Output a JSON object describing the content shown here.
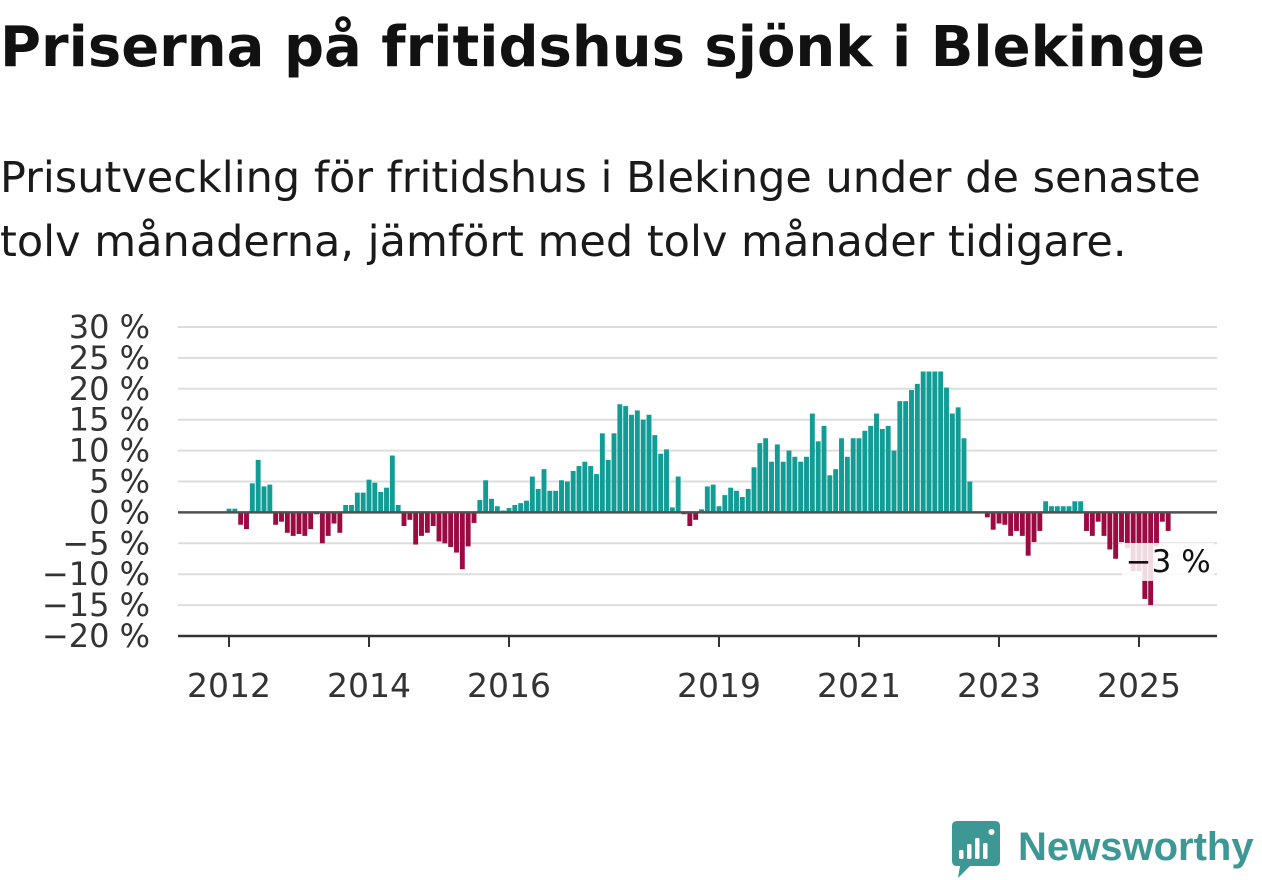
{
  "chart_data": {
    "type": "bar",
    "title": "Priserna på fritidshus sjönk i Blekinge",
    "subtitle": "Prisutveckling för fritidshus i Blekinge under de senaste tolv månaderna, jämfört med tolv månader tidigare.",
    "ylim": [
      -20,
      30
    ],
    "y_ticks": [
      30,
      25,
      20,
      15,
      10,
      5,
      0,
      -5,
      -10,
      -15,
      -20
    ],
    "y_tick_labels": [
      "30 %",
      "25 %",
      "20 %",
      "15 %",
      "10 %",
      "5 %",
      "0 %",
      "−5 %",
      "−10 %",
      "−15 %",
      "−20 %"
    ],
    "x_tick_labels": [
      "2012",
      "2014",
      "2016",
      "2019",
      "2021",
      "2023",
      "2025"
    ],
    "grid": true,
    "colors": {
      "positive": "#119c96",
      "negative": "#9b0a41"
    },
    "x": [
      "2012-01",
      "2012-02",
      "2012-03",
      "2012-04",
      "2012-05",
      "2012-06",
      "2012-07",
      "2012-08",
      "2012-09",
      "2012-10",
      "2012-11",
      "2012-12",
      "2013-01",
      "2013-02",
      "2013-03",
      "2013-04",
      "2013-05",
      "2013-06",
      "2013-07",
      "2013-08",
      "2013-09",
      "2013-10",
      "2013-11",
      "2013-12",
      "2014-01",
      "2014-02",
      "2014-03",
      "2014-04",
      "2014-05",
      "2014-06",
      "2014-07",
      "2014-08",
      "2014-09",
      "2014-10",
      "2014-11",
      "2014-12",
      "2015-01",
      "2015-02",
      "2015-03",
      "2015-04",
      "2015-05",
      "2015-06",
      "2015-07",
      "2015-08",
      "2015-09",
      "2015-10",
      "2015-11",
      "2015-12",
      "2016-01",
      "2016-02",
      "2016-03",
      "2016-04",
      "2016-05",
      "2016-06",
      "2016-07",
      "2016-08",
      "2016-09",
      "2016-10",
      "2016-11",
      "2016-12",
      "2017-01",
      "2017-02",
      "2017-03",
      "2017-04",
      "2017-05",
      "2017-06",
      "2017-07",
      "2017-08",
      "2017-09",
      "2017-10",
      "2017-11",
      "2017-12",
      "2018-01",
      "2018-02",
      "2018-03",
      "2018-04",
      "2018-05",
      "2018-06",
      "2018-07",
      "2018-08",
      "2018-09",
      "2018-10",
      "2018-11",
      "2018-12",
      "2019-01",
      "2019-02",
      "2019-03",
      "2019-04",
      "2019-05",
      "2019-06",
      "2019-07",
      "2019-08",
      "2019-09",
      "2019-10",
      "2019-11",
      "2019-12",
      "2020-01",
      "2020-02",
      "2020-03",
      "2020-04",
      "2020-05",
      "2020-06",
      "2020-07",
      "2020-08",
      "2020-09",
      "2020-10",
      "2020-11",
      "2020-12",
      "2021-01",
      "2021-02",
      "2021-03",
      "2021-04",
      "2021-05",
      "2021-06",
      "2021-07",
      "2021-08",
      "2021-09",
      "2021-10",
      "2021-11",
      "2021-12",
      "2022-01",
      "2022-02",
      "2022-03",
      "2022-04",
      "2022-05",
      "2022-06",
      "2022-07",
      "2022-08",
      "2022-09",
      "2022-10",
      "2022-11",
      "2022-12",
      "2023-01",
      "2023-02",
      "2023-03",
      "2023-04",
      "2023-05",
      "2023-06",
      "2023-07",
      "2023-08",
      "2023-09",
      "2023-10",
      "2023-11",
      "2023-12",
      "2024-01",
      "2024-02",
      "2024-03",
      "2024-04",
      "2024-05",
      "2024-06",
      "2024-07",
      "2024-08",
      "2024-09",
      "2024-10",
      "2024-11",
      "2024-12",
      "2025-01",
      "2025-02",
      "2025-03",
      "2025-04",
      "2025-05",
      "2025-06"
    ],
    "values": [
      0.6,
      0.6,
      -2,
      -2.7,
      4.7,
      8.5,
      4.2,
      4.5,
      -2,
      -1.5,
      -3.3,
      -3.8,
      -3.5,
      -3.8,
      -2.7,
      -0.3,
      -5,
      -3.8,
      -1.8,
      -3.3,
      1.2,
      1.2,
      3.2,
      3.2,
      5.3,
      4.8,
      3.3,
      4,
      9.2,
      1.2,
      -2.2,
      -1.2,
      -5.2,
      -3.8,
      -3.3,
      -2.2,
      -4.7,
      -5,
      -5.6,
      -6.5,
      -9.2,
      -5.5,
      -1.7,
      2,
      5.2,
      2.2,
      1,
      0.3,
      0.7,
      1.2,
      1.5,
      1.9,
      5.8,
      3.8,
      7,
      3.5,
      3.5,
      5.2,
      5,
      6.7,
      7.5,
      8.2,
      7.5,
      6.2,
      12.8,
      8.5,
      12.8,
      17.5,
      17.2,
      15.8,
      16.5,
      15,
      15.8,
      12.5,
      9.5,
      10.2,
      0.8,
      5.8,
      -0.3,
      -2.2,
      -1.2,
      0.5,
      4.2,
      4.5,
      1,
      2.8,
      4,
      3.5,
      2.5,
      3.8,
      7.3,
      11.2,
      12,
      8.2,
      11,
      8.2,
      10,
      9,
      8.2,
      9,
      16,
      11.5,
      14,
      6,
      7,
      12,
      9,
      12,
      12,
      13.2,
      14,
      16,
      13.5,
      14,
      10,
      18,
      18,
      19.8,
      20.8,
      22.8,
      22.8,
      22.8,
      22.8,
      20.2,
      16,
      17,
      12,
      5,
      null,
      null,
      -0.8,
      -2.8,
      -1.8,
      -2,
      -3.8,
      -3,
      -3.8,
      -7,
      -4.8,
      -3,
      1.8,
      1,
      1,
      1,
      1,
      1.8,
      1.8,
      -3,
      -3.8,
      -1.5,
      -3.8,
      -6,
      -7.5,
      -4.8,
      -5.8,
      -9.5,
      -9.5,
      -14,
      -15,
      -5.5,
      -1.5,
      -3
    ],
    "annotation": {
      "text": "−3 %",
      "x": "2025-06",
      "y": -3
    }
  },
  "logo": {
    "text": "Newsworthy",
    "icon": "newsworthy-bar-chart-bubble-icon"
  }
}
